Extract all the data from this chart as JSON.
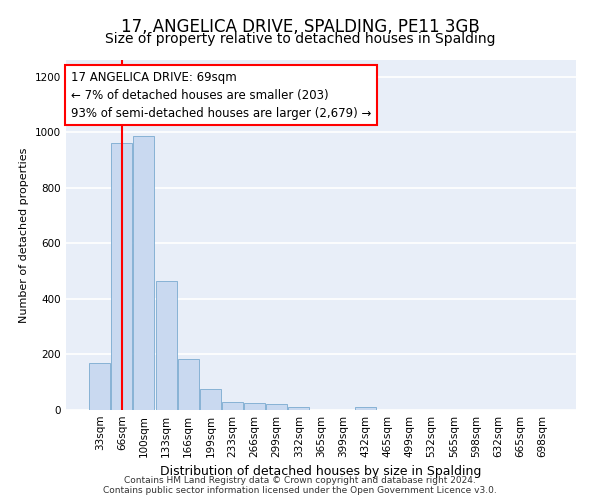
{
  "title": "17, ANGELICA DRIVE, SPALDING, PE11 3GB",
  "subtitle": "Size of property relative to detached houses in Spalding",
  "xlabel": "Distribution of detached houses by size in Spalding",
  "ylabel": "Number of detached properties",
  "categories": [
    "33sqm",
    "66sqm",
    "100sqm",
    "133sqm",
    "166sqm",
    "199sqm",
    "233sqm",
    "266sqm",
    "299sqm",
    "332sqm",
    "365sqm",
    "399sqm",
    "432sqm",
    "465sqm",
    "499sqm",
    "532sqm",
    "565sqm",
    "598sqm",
    "632sqm",
    "665sqm",
    "698sqm"
  ],
  "values": [
    170,
    960,
    985,
    465,
    185,
    75,
    30,
    25,
    20,
    12,
    0,
    0,
    12,
    0,
    0,
    0,
    0,
    0,
    0,
    0,
    0
  ],
  "bar_color": "#c9d9f0",
  "bar_edgecolor": "#7aaad0",
  "red_line_x": 1.0,
  "annotation_text": "17 ANGELICA DRIVE: 69sqm\n← 7% of detached houses are smaller (203)\n93% of semi-detached houses are larger (2,679) →",
  "annotation_box_color": "white",
  "annotation_box_edgecolor": "red",
  "ylim": [
    0,
    1260
  ],
  "yticks": [
    0,
    200,
    400,
    600,
    800,
    1000,
    1200
  ],
  "bg_color": "#e8eef8",
  "grid_color": "white",
  "footer_text": "Contains HM Land Registry data © Crown copyright and database right 2024.\nContains public sector information licensed under the Open Government Licence v3.0.",
  "title_fontsize": 12,
  "subtitle_fontsize": 10,
  "xlabel_fontsize": 9,
  "ylabel_fontsize": 8,
  "tick_fontsize": 7.5,
  "annotation_fontsize": 8.5,
  "footer_fontsize": 6.5
}
